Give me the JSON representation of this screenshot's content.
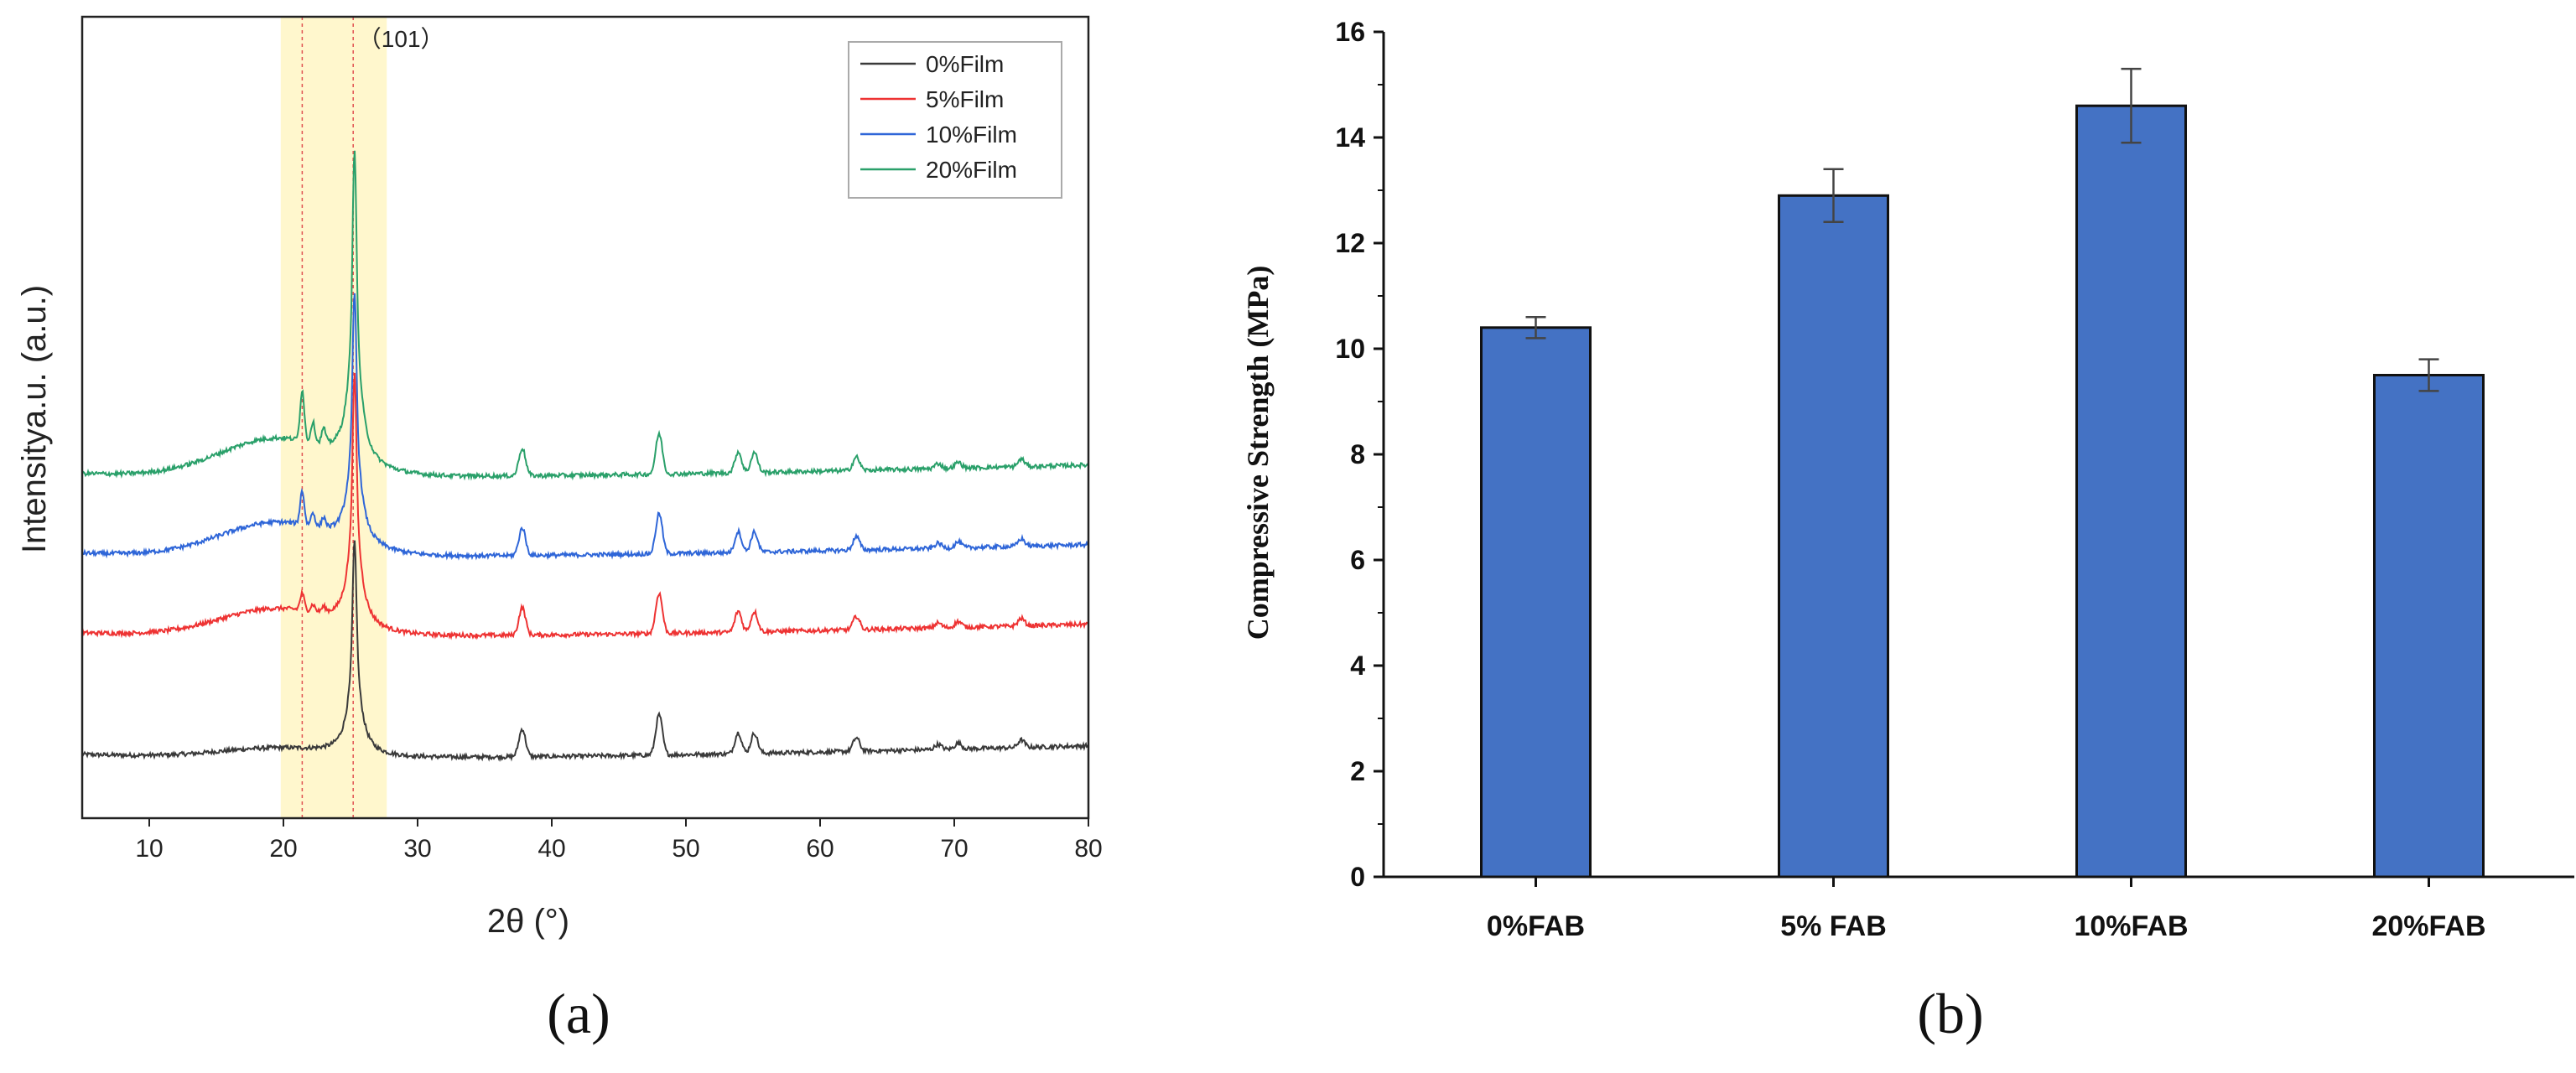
{
  "colors": {
    "series_0": "#3a3a3a",
    "series_5": "#ee3333",
    "series_10": "#2f66d8",
    "series_20": "#2aa06a",
    "highlight": "#fff5c0",
    "bar": "#4472c4"
  },
  "chart_data": [
    {
      "type": "line",
      "panel_label": "(a)",
      "xlabel": "2θ (°)",
      "ylabel": "Intensitya.u. (a.u.)",
      "xlim": [
        5,
        80
      ],
      "x_ticks": [
        "10",
        "20",
        "30",
        "40",
        "50",
        "60",
        "70",
        "80"
      ],
      "peak_annotation": "（101）",
      "peak_position": 25.3,
      "highlight_range": [
        19.8,
        27.7
      ],
      "reference_lines": [
        21.4,
        25.2
      ],
      "baseline_offsets": [
        0,
        145,
        240,
        335
      ],
      "peak_positions": [
        37.8,
        48.0,
        53.9,
        55.1,
        62.7,
        68.8,
        70.3,
        75.0
      ],
      "peak_heights": [
        33,
        48,
        25,
        24,
        16,
        6,
        7,
        9
      ],
      "anatase_101_height": 300,
      "legend_position": "top-right",
      "series": [
        {
          "name": "0%Film",
          "color_key": "series_0",
          "hump_height": 11
        },
        {
          "name": "5%Film",
          "color_key": "series_5",
          "hump_height": 32
        },
        {
          "name": "10%Film",
          "color_key": "series_10",
          "hump_height": 40
        },
        {
          "name": "20%Film",
          "color_key": "series_20",
          "hump_height": 45
        }
      ]
    },
    {
      "type": "bar",
      "panel_label": "(b)",
      "ylabel": "Compressive Strength (MPa)",
      "xlabel": "",
      "ylim": [
        0,
        16
      ],
      "y_ticks": [
        "0",
        "2",
        "4",
        "6",
        "8",
        "10",
        "12",
        "14",
        "16"
      ],
      "categories": [
        "0%FAB",
        "5% FAB",
        "10%FAB",
        "20%FAB"
      ],
      "values": [
        10.4,
        12.9,
        14.6,
        9.5
      ],
      "errors": [
        0.2,
        0.5,
        0.7,
        0.3
      ]
    }
  ]
}
